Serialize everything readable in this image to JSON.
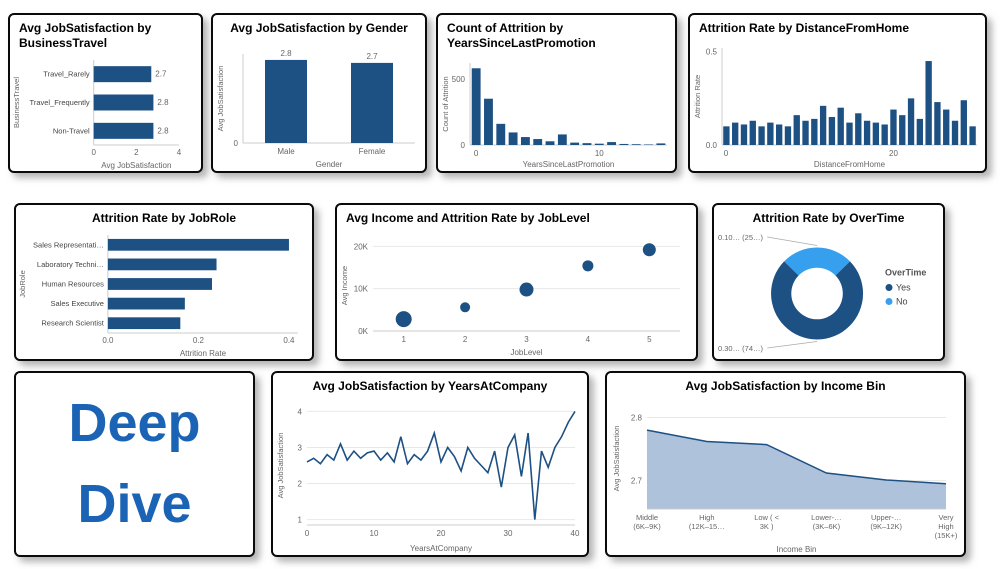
{
  "theme": {
    "bar_color": "#1D5083",
    "light_blue": "#37A0EE",
    "axis_color": "#cccccc",
    "grid_color": "#e8e8e8",
    "label_color": "#666666",
    "area_fill": "#AEC2DC",
    "deep_dive_color": "#1B63B5"
  },
  "deep_dive": {
    "line1": "Deep",
    "line2": "Dive"
  },
  "chart_data": [
    {
      "title": "Avg JobSatisfaction by BusinessTravel",
      "type": "barh",
      "categories": [
        "Travel_Rarely",
        "Travel_Frequently",
        "Non-Travel"
      ],
      "values": [
        2.7,
        2.8,
        2.8
      ],
      "value_labels": [
        "2.7",
        "2.8",
        "2.8"
      ],
      "xlim": [
        0,
        4
      ],
      "xticks": [
        0,
        2,
        4
      ],
      "xtick_labels": [
        "0",
        "2",
        "4"
      ],
      "xlabel": "Avg JobSatisfaction",
      "ylabel": "BusinessTravel"
    },
    {
      "title": "Avg JobSatisfaction by Gender",
      "type": "bar",
      "categories": [
        "Male",
        "Female"
      ],
      "values": [
        2.8,
        2.7
      ],
      "value_labels": [
        "2.8",
        "2.7"
      ],
      "ylim": [
        0,
        3
      ],
      "yticks": [
        0
      ],
      "ytick_labels": [
        "0"
      ],
      "xlabel": "Gender",
      "ylabel": "Avg JobSatisfaction"
    },
    {
      "title": "Count of Attrition by YearsSinceLastPromotion",
      "type": "column",
      "x_start": 0,
      "values": [
        580,
        350,
        160,
        95,
        60,
        45,
        28,
        80,
        18,
        14,
        10,
        22,
        8,
        6,
        4,
        12
      ],
      "ylim": [
        0,
        620
      ],
      "yticks": [
        0,
        500
      ],
      "ytick_labels": [
        "0",
        "500"
      ],
      "xticks": [
        0,
        10
      ],
      "xtick_labels": [
        "0",
        "10"
      ],
      "xlabel": "YearsSinceLastPromotion",
      "ylabel": "Count of Attrition"
    },
    {
      "title": "Attrition Rate by DistanceFromHome",
      "type": "column",
      "x_start": 1,
      "values": [
        0.1,
        0.12,
        0.11,
        0.13,
        0.1,
        0.12,
        0.11,
        0.1,
        0.16,
        0.13,
        0.14,
        0.21,
        0.15,
        0.2,
        0.12,
        0.17,
        0.13,
        0.12,
        0.11,
        0.19,
        0.16,
        0.25,
        0.14,
        0.45,
        0.23,
        0.19,
        0.13,
        0.24,
        0.1
      ],
      "ylim": [
        0,
        0.52
      ],
      "yticks": [
        0,
        0.5
      ],
      "ytick_labels": [
        "0.0",
        "0.5"
      ],
      "xticks": [
        0,
        20
      ],
      "xtick_labels": [
        "0",
        "20"
      ],
      "xlabel": "DistanceFromHome",
      "ylabel": "Attrition Rate"
    },
    {
      "title": "Attrition Rate by JobRole",
      "type": "barh",
      "categories": [
        "Sales Representati…",
        "Laboratory Techni…",
        "Human Resources",
        "Sales Executive",
        "Research Scientist"
      ],
      "values": [
        0.4,
        0.24,
        0.23,
        0.17,
        0.16
      ],
      "xlim": [
        0,
        0.42
      ],
      "xticks": [
        0,
        0.2,
        0.4
      ],
      "xtick_labels": [
        "0.0",
        "0.2",
        "0.4"
      ],
      "xlabel": "Attrition Rate",
      "ylabel": "JobRole"
    },
    {
      "title": "Avg Income and Attrition Rate by JobLevel",
      "type": "scatter",
      "x": [
        1,
        2,
        3,
        4,
        5
      ],
      "y": [
        2800,
        5600,
        9800,
        15400,
        19200
      ],
      "r": [
        8,
        5,
        7,
        5.5,
        6.5
      ],
      "xlim": [
        0.5,
        5.5
      ],
      "ylim": [
        0,
        21500
      ],
      "yticks": [
        0,
        10000,
        20000
      ],
      "ytick_labels": [
        "0K",
        "10K",
        "20K"
      ],
      "xticks": [
        1,
        2,
        3,
        4,
        5
      ],
      "xtick_labels": [
        "1",
        "2",
        "3",
        "4",
        "5"
      ],
      "xlabel": "JobLevel",
      "ylabel": "Avg Income"
    },
    {
      "title": "Attrition Rate by OverTime",
      "type": "donut",
      "segments": [
        {
          "name": "No",
          "rate": 0.1,
          "pct": 25.4,
          "color_key": "light_blue",
          "callout": "0.10… (25…)",
          "callout_pos": "top-left"
        },
        {
          "name": "Yes",
          "rate": 0.3,
          "pct": 74.6,
          "color_key": "bar_color",
          "callout": "0.30… (74…)",
          "callout_pos": "bottom-left"
        }
      ],
      "legend": {
        "title": "OverTime",
        "items": [
          {
            "label": "Yes",
            "color_key": "bar_color"
          },
          {
            "label": "No",
            "color_key": "light_blue"
          }
        ]
      }
    },
    {
      "title": "Avg JobSatisfaction by YearsAtCompany",
      "type": "line",
      "x_start": 0,
      "values": [
        2.6,
        2.7,
        2.55,
        2.8,
        2.65,
        3.1,
        2.65,
        2.9,
        2.7,
        2.85,
        2.9,
        2.65,
        2.85,
        2.6,
        3.3,
        2.55,
        2.8,
        2.65,
        2.9,
        3.4,
        2.6,
        3.0,
        2.75,
        2.35,
        3.0,
        2.7,
        2.5,
        2.3,
        2.9,
        1.9,
        3.0,
        3.35,
        2.2,
        3.4,
        1.0,
        2.9,
        2.45,
        3.0,
        3.3,
        3.7,
        4.0
      ],
      "ylim": [
        0.85,
        4.15
      ],
      "yticks": [
        1,
        2,
        3,
        4
      ],
      "ytick_labels": [
        "1",
        "2",
        "3",
        "4"
      ],
      "xticks": [
        0,
        10,
        20,
        30,
        40
      ],
      "xtick_labels": [
        "0",
        "10",
        "20",
        "30",
        "40"
      ],
      "xlabel": "YearsAtCompany",
      "ylabel": "Avg JobSatisfaction"
    },
    {
      "title": "Avg JobSatisfaction by Income Bin",
      "type": "area",
      "categories": [
        [
          "Middle",
          "(6K–9K)"
        ],
        [
          "High",
          "(12K–15…"
        ],
        [
          "Low ( <",
          "3K )"
        ],
        [
          "Lower-…",
          "(3K–6K)"
        ],
        [
          "Upper-…",
          "(9K–12K)"
        ],
        [
          "Very",
          "High",
          "(15K+)"
        ]
      ],
      "values": [
        2.78,
        2.762,
        2.757,
        2.712,
        2.701,
        2.695
      ],
      "ylim": [
        2.655,
        2.815
      ],
      "yticks": [
        2.7,
        2.8
      ],
      "ytick_labels": [
        "2.7",
        "2.8"
      ],
      "xlabel": "Income Bin",
      "ylabel": "Avg JobSatisfaction"
    }
  ]
}
